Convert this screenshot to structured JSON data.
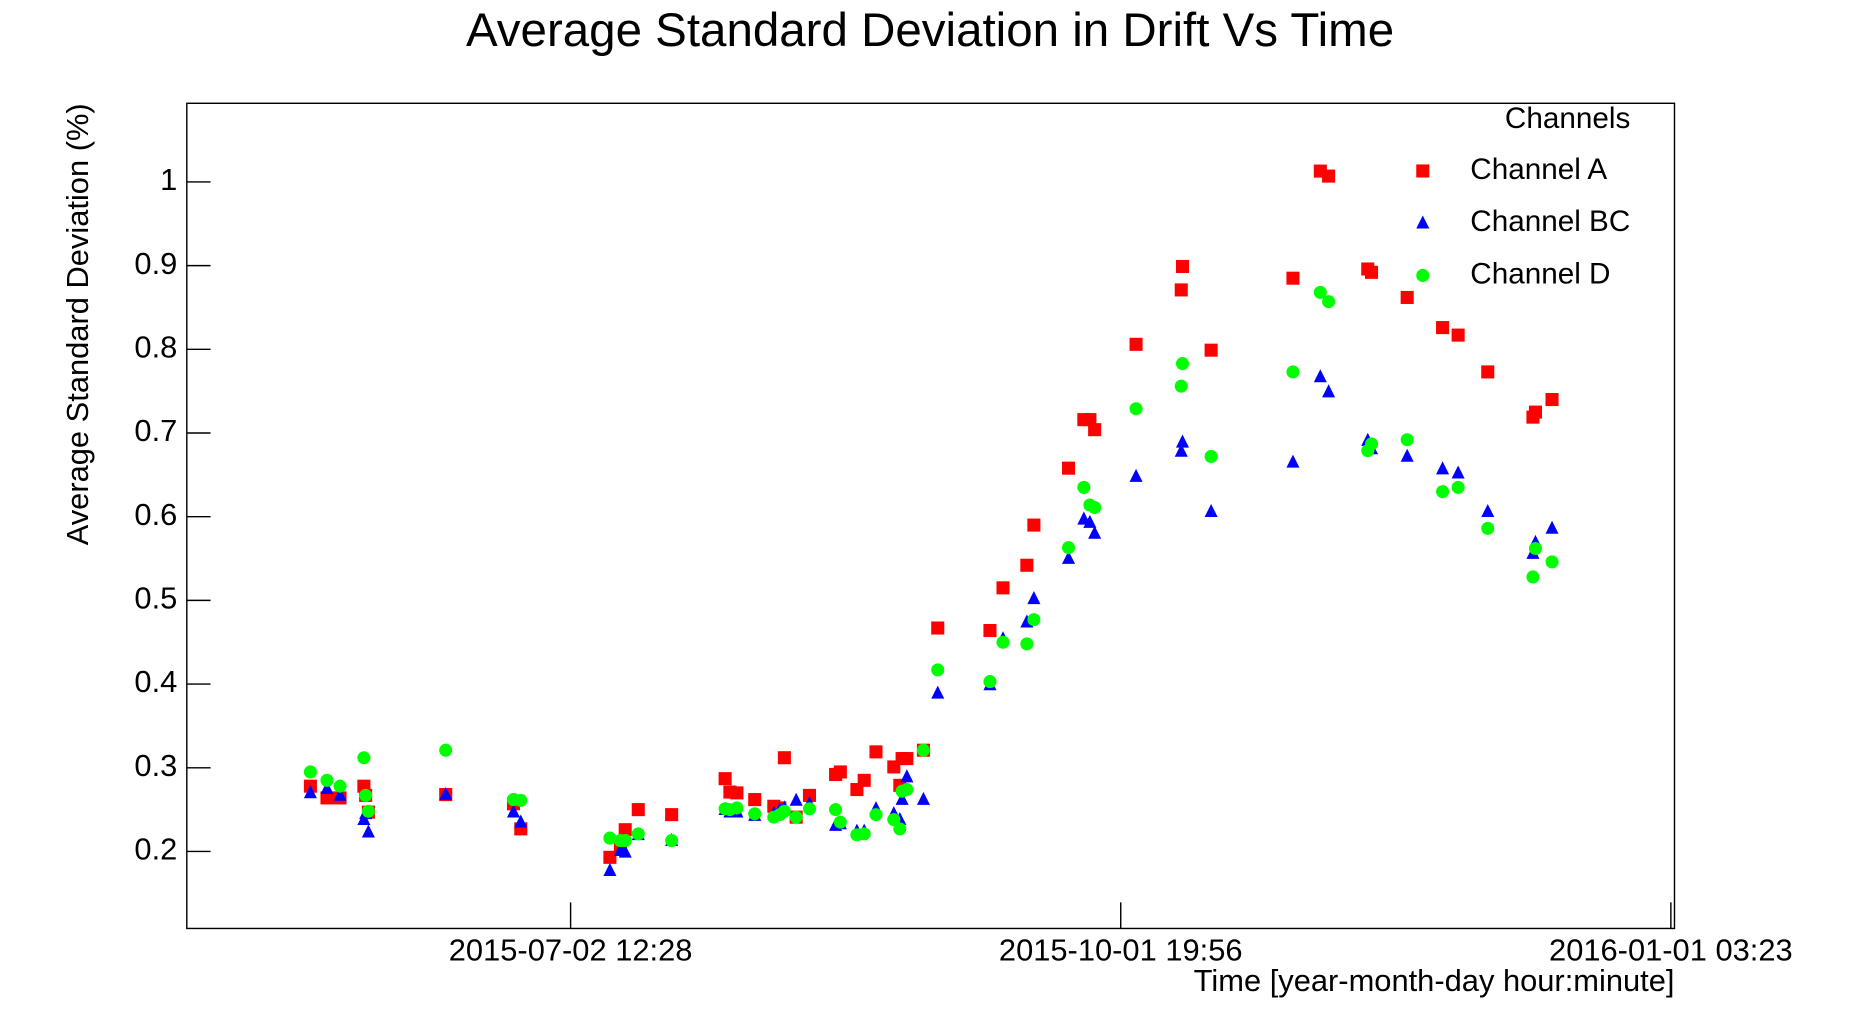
{
  "chart_data": {
    "type": "scatter",
    "title": "Average Standard Deviation in Drift Vs Time",
    "x_label": "Time [year-month-day hour:minute]",
    "y_label": "Average Standard Deviation (%)",
    "legend_title": "Channels",
    "legend": "top-right",
    "xlim": [
      "2015-04-29 19:40",
      "2016-01-01 17:50"
    ],
    "xticks": [
      "2015-07-02 12:28",
      "2015-10-01 19:56",
      "2016-01-01 03:23"
    ],
    "ylim": [
      0.108,
      1.094
    ],
    "yticks": [
      0.2,
      0.3,
      0.4,
      0.5,
      0.6,
      0.7,
      0.8,
      0.9,
      1
    ],
    "x": [
      "2015-05-20 08:00",
      "2015-05-23 02:00",
      "2015-05-25 06:00",
      "2015-05-29 05:00",
      "2015-05-29 12:00",
      "2015-05-29 23:00",
      "2015-06-11 19:00",
      "2015-06-23 01:00",
      "2015-06-24 06:00",
      "2015-07-09 01:00",
      "2015-07-10 19:00",
      "2015-07-11 14:00",
      "2015-07-13 18:00",
      "2015-07-19 07:00",
      "2015-07-28 04:00",
      "2015-07-28 23:00",
      "2015-07-30 03:00",
      "2015-08-02 02:00",
      "2015-08-05 06:00",
      "2015-08-06 06:00",
      "2015-08-07 00:00",
      "2015-08-08 23:00",
      "2015-08-11 04:00",
      "2015-08-15 12:00",
      "2015-08-16 07:00",
      "2015-08-19 01:00",
      "2015-08-20 06:00",
      "2015-08-22 05:00",
      "2015-08-25 04:00",
      "2015-08-26 04:00",
      "2015-08-26 13:00",
      "2015-08-27 08:00",
      "2015-08-30 02:00",
      "2015-09-01 11:00",
      "2015-09-10 03:00",
      "2015-09-12 07:00",
      "2015-09-16 06:00",
      "2015-09-17 10:00",
      "2015-09-23 04:00",
      "2015-09-25 17:00",
      "2015-09-26 17:00",
      "2015-09-27 12:00",
      "2015-10-04 09:00",
      "2015-10-11 21:00",
      "2015-10-12 02:00",
      "2015-10-16 20:00",
      "2015-10-30 10:00",
      "2015-11-03 23:00",
      "2015-11-05 08:00",
      "2015-11-11 20:00",
      "2015-11-12 11:00",
      "2015-11-18 09:00",
      "2015-11-24 06:00",
      "2015-11-26 20:00",
      "2015-12-01 18:00",
      "2015-12-09 06:00",
      "2015-12-09 16:00",
      "2015-12-12 10:00"
    ],
    "series": [
      {
        "name": "Channel A",
        "color": "#ff0000",
        "marker": "square",
        "values": [
          0.278,
          0.264,
          0.264,
          0.278,
          0.267,
          0.247,
          0.268,
          0.257,
          0.227,
          0.193,
          0.206,
          0.226,
          0.25,
          0.244,
          0.287,
          0.271,
          0.27,
          0.262,
          0.254,
          0.252,
          0.312,
          0.241,
          0.267,
          0.292,
          0.295,
          0.274,
          0.285,
          0.319,
          0.301,
          0.279,
          0.311,
          0.311,
          0.321,
          0.467,
          0.464,
          0.515,
          0.542,
          0.59,
          0.658,
          0.716,
          0.716,
          0.704,
          0.806,
          0.871,
          0.899,
          0.799,
          0.885,
          1.013,
          1.007,
          0.896,
          0.892,
          0.862,
          0.826,
          0.817,
          0.773,
          0.719,
          0.725,
          0.74
        ]
      },
      {
        "name": "Channel BC",
        "color": "#0000ff",
        "marker": "triangle",
        "values": [
          0.27,
          0.275,
          0.267,
          0.238,
          0.245,
          0.223,
          0.268,
          0.247,
          0.235,
          0.177,
          0.201,
          0.199,
          0.22,
          0.213,
          0.25,
          0.247,
          0.247,
          0.243,
          0.245,
          0.25,
          0.252,
          0.261,
          0.257,
          0.231,
          0.233,
          0.224,
          0.224,
          0.251,
          0.245,
          0.238,
          0.262,
          0.289,
          0.262,
          0.389,
          0.399,
          0.454,
          0.474,
          0.502,
          0.55,
          0.597,
          0.593,
          0.58,
          0.648,
          0.678,
          0.689,
          0.606,
          0.665,
          0.767,
          0.749,
          0.691,
          0.681,
          0.672,
          0.657,
          0.652,
          0.606,
          0.556,
          0.569,
          0.586
        ]
      },
      {
        "name": "Channel D",
        "color": "#00ff00",
        "marker": "circle",
        "values": [
          0.295,
          0.285,
          0.278,
          0.312,
          0.267,
          0.248,
          0.321,
          0.262,
          0.261,
          0.216,
          0.213,
          0.213,
          0.221,
          0.213,
          0.251,
          0.25,
          0.252,
          0.245,
          0.241,
          0.244,
          0.248,
          0.241,
          0.251,
          0.25,
          0.235,
          0.22,
          0.221,
          0.244,
          0.238,
          0.227,
          0.272,
          0.274,
          0.321,
          0.417,
          0.403,
          0.45,
          0.448,
          0.477,
          0.563,
          0.635,
          0.614,
          0.611,
          0.729,
          0.756,
          0.783,
          0.672,
          0.773,
          0.868,
          0.857,
          0.679,
          0.687,
          0.692,
          0.63,
          0.635,
          0.586,
          0.528,
          0.562,
          0.546
        ]
      }
    ]
  }
}
